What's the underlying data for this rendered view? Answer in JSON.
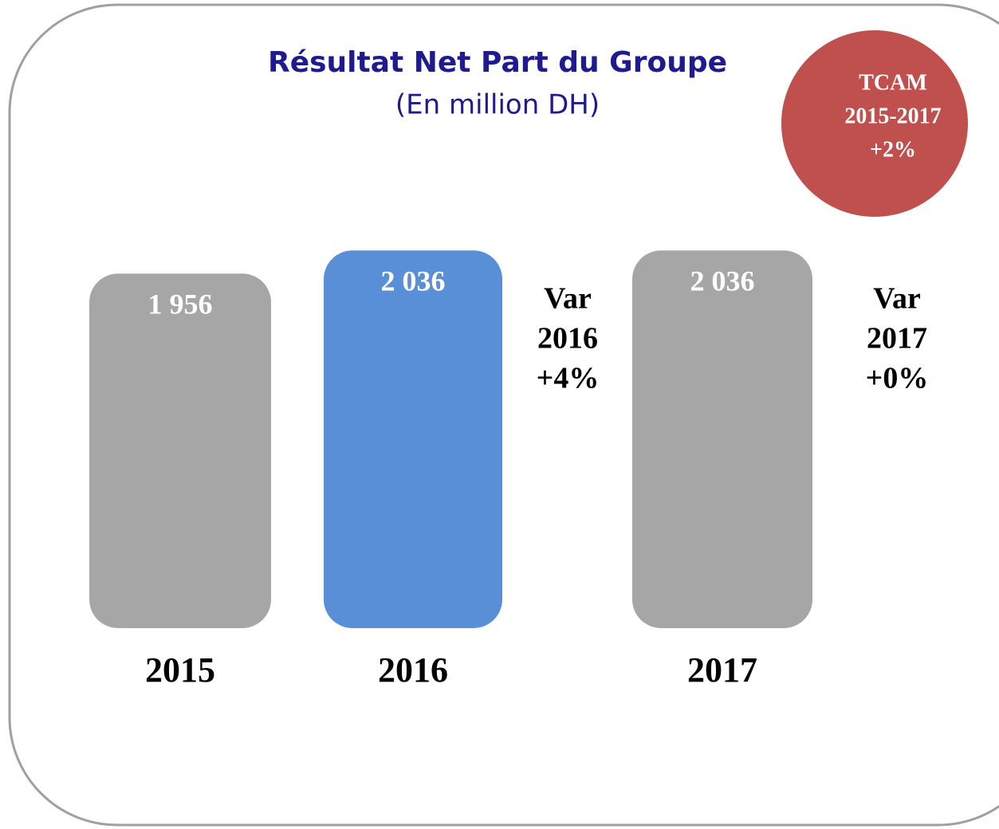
{
  "chart_data": {
    "type": "bar",
    "title": "Résultat Net Part du Groupe",
    "subtitle": "(En million DH)",
    "categories": [
      "2015",
      "2016",
      "2017"
    ],
    "values": [
      1956,
      2036,
      2036
    ],
    "value_labels": [
      "1 956",
      "2 036",
      "2 036"
    ],
    "colors": [
      "#a6a6a6",
      "#598fd6",
      "#a6a6a6"
    ],
    "ylim": [
      730,
      2100
    ],
    "annotations": [
      {
        "lines": [
          "Var",
          "2016",
          "+4%"
        ]
      },
      {
        "lines": [
          "Var",
          "2017",
          "+0%"
        ]
      }
    ],
    "badge": {
      "lines": [
        "TCAM",
        "2015-2017",
        "+2%"
      ],
      "color": "#c0504d"
    }
  }
}
